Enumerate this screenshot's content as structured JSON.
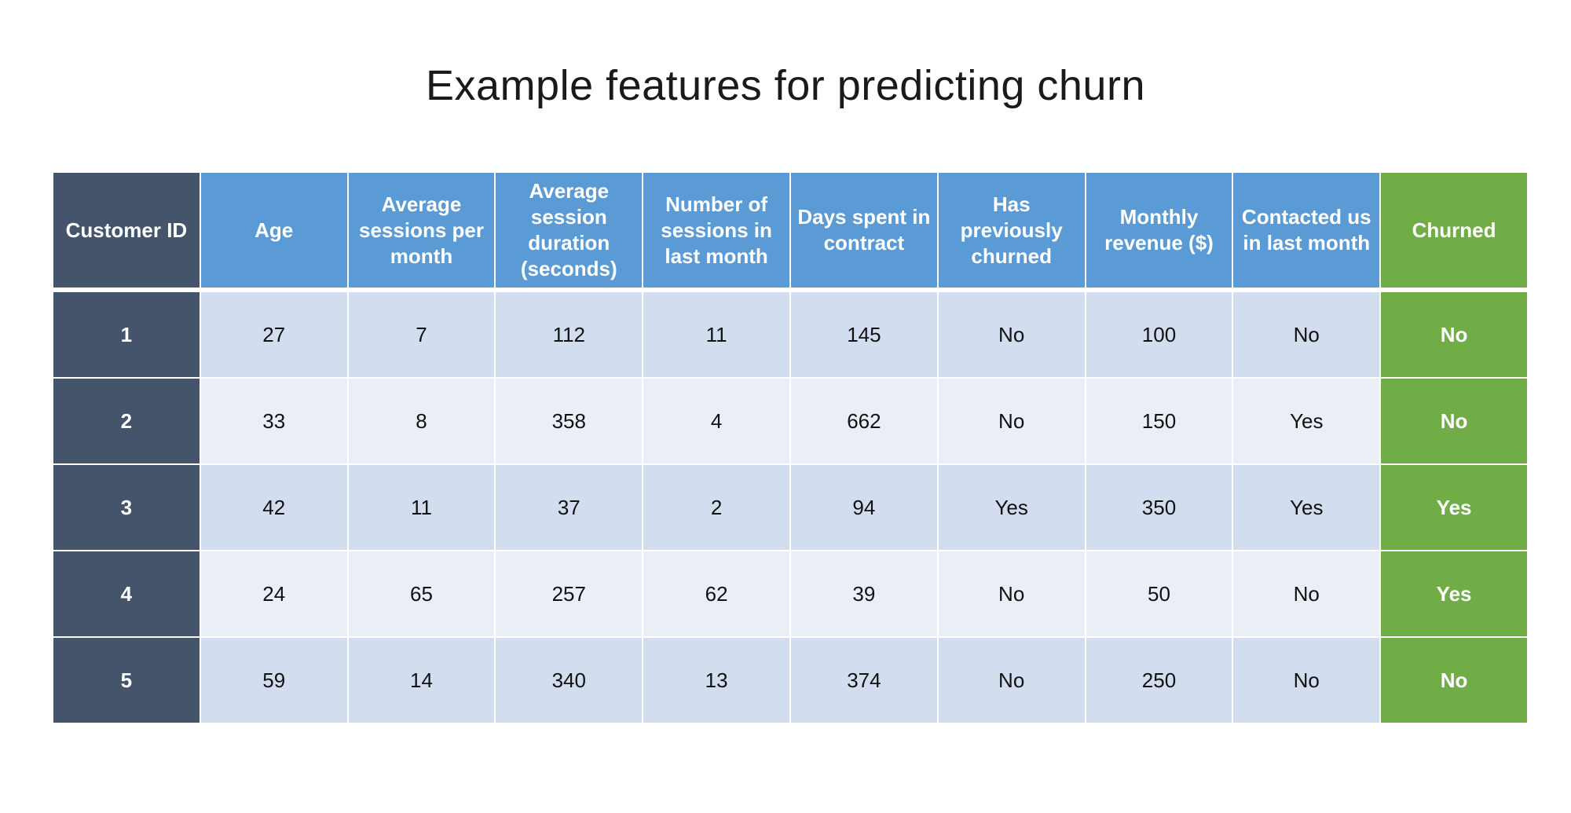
{
  "title": "Example features for predicting churn",
  "colors": {
    "header_blue": "#5b9bd5",
    "id_column": "#44546a",
    "churn_column": "#70ad47",
    "row_odd": "#d2deef",
    "row_even": "#eaeff7"
  },
  "table": {
    "columns": [
      "Customer ID",
      "Age",
      "Average sessions per month",
      "Average session duration (seconds)",
      "Number of sessions in last month",
      "Days spent in contract",
      "Has previously churned",
      "Monthly revenue ($)",
      "Contacted us in last month",
      "Churned"
    ],
    "rows": [
      [
        "1",
        "27",
        "7",
        "112",
        "11",
        "145",
        "No",
        "100",
        "No",
        "No"
      ],
      [
        "2",
        "33",
        "8",
        "358",
        "4",
        "662",
        "No",
        "150",
        "Yes",
        "No"
      ],
      [
        "3",
        "42",
        "11",
        "37",
        "2",
        "94",
        "Yes",
        "350",
        "Yes",
        "Yes"
      ],
      [
        "4",
        "24",
        "65",
        "257",
        "62",
        "39",
        "No",
        "50",
        "No",
        "Yes"
      ],
      [
        "5",
        "59",
        "14",
        "340",
        "13",
        "374",
        "No",
        "250",
        "No",
        "No"
      ]
    ]
  }
}
